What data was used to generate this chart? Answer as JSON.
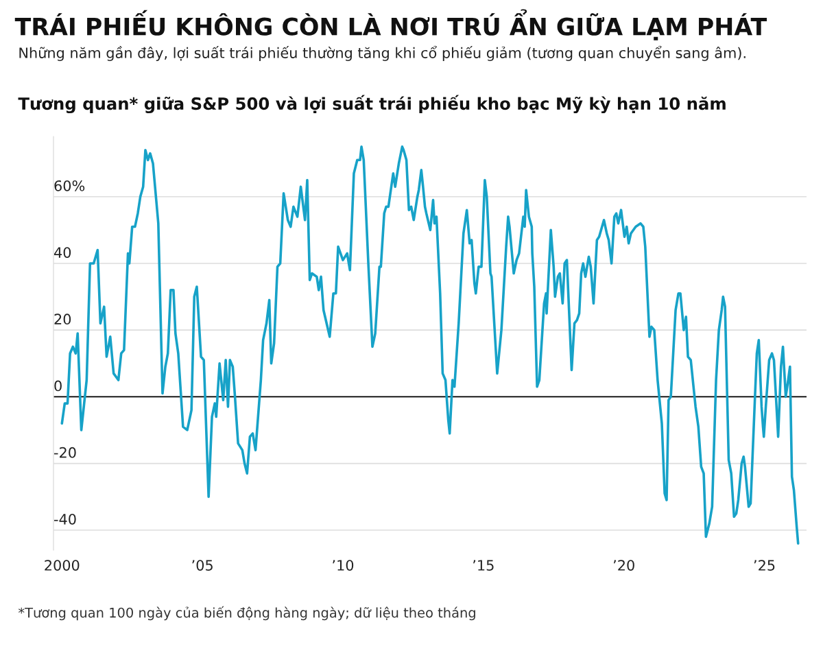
{
  "chart_data": {
    "type": "line",
    "title": "TRÁI PHIẾU KHÔNG CÒN LÀ NƠI TRÚ ẨN GIỮA LẠM PHÁT",
    "subtitle": "Những năm gần đây, lợi suất trái phiếu thường tăng khi cổ phiếu giảm (tương quan chuyển sang âm).",
    "ylabel": "Tương quan* giữa S&P 500 và lợi suất trái phiếu kho bạc Mỹ kỳ hạn 10 năm",
    "annotations": [
      "*Tương quan 100 ngày của biến động hàng ngày; dữ liệu theo tháng"
    ],
    "x": [
      2000.0,
      2000.1,
      2000.2,
      2000.29,
      2000.39,
      2000.49,
      2000.56,
      2000.69,
      2000.88,
      2001.0,
      2001.13,
      2001.27,
      2001.37,
      2001.5,
      2001.59,
      2001.72,
      2001.84,
      2002.01,
      2002.11,
      2002.21,
      2002.35,
      2002.4,
      2002.5,
      2002.6,
      2002.7,
      2002.79,
      2002.89,
      2002.97,
      2003.06,
      2003.14,
      2003.24,
      2003.43,
      2003.58,
      2003.68,
      2003.77,
      2003.87,
      2003.97,
      2004.04,
      2004.14,
      2004.31,
      2004.46,
      2004.61,
      2004.71,
      2004.8,
      2004.95,
      2005.05,
      2005.22,
      2005.34,
      2005.44,
      2005.49,
      2005.61,
      2005.74,
      2005.83,
      2005.91,
      2005.98,
      2006.08,
      2006.15,
      2006.27,
      2006.42,
      2006.5,
      2006.59,
      2006.69,
      2006.79,
      2006.89,
      2007.08,
      2007.16,
      2007.28,
      2007.38,
      2007.45,
      2007.55,
      2007.67,
      2007.77,
      2007.89,
      2008.04,
      2008.14,
      2008.24,
      2008.38,
      2008.5,
      2008.65,
      2008.73,
      2008.82,
      2008.9,
      2009.07,
      2009.14,
      2009.22,
      2009.31,
      2009.53,
      2009.66,
      2009.75,
      2009.83,
      2010.0,
      2010.15,
      2010.25,
      2010.39,
      2010.51,
      2010.61,
      2010.66,
      2010.74,
      2010.91,
      2011.05,
      2011.15,
      2011.3,
      2011.35,
      2011.47,
      2011.54,
      2011.62,
      2011.79,
      2011.86,
      2011.99,
      2012.11,
      2012.16,
      2012.26,
      2012.35,
      2012.43,
      2012.52,
      2012.65,
      2012.7,
      2012.79,
      2012.84,
      2012.92,
      2012.97,
      2013.11,
      2013.21,
      2013.26,
      2013.33,
      2013.46,
      2013.55,
      2013.65,
      2013.75,
      2013.8,
      2013.9,
      2013.97,
      2014.12,
      2014.29,
      2014.41,
      2014.51,
      2014.58,
      2014.68,
      2014.73,
      2014.83,
      2014.93,
      2015.05,
      2015.12,
      2015.25,
      2015.29,
      2015.49,
      2015.64,
      2015.81,
      2015.88,
      2015.93,
      2016.08,
      2016.18,
      2016.27,
      2016.42,
      2016.47,
      2016.52,
      2016.62,
      2016.72,
      2016.74,
      2016.81,
      2016.91,
      2016.99,
      2017.16,
      2017.23,
      2017.25,
      2017.4,
      2017.5,
      2017.55,
      2017.65,
      2017.72,
      2017.82,
      2017.89,
      2017.97,
      2018.14,
      2018.24,
      2018.33,
      2018.41,
      2018.48,
      2018.55,
      2018.63,
      2018.75,
      2018.82,
      2018.92,
      2019.04,
      2019.12,
      2019.29,
      2019.39,
      2019.46,
      2019.56,
      2019.66,
      2019.73,
      2019.8,
      2019.9,
      2020.02,
      2020.1,
      2020.17,
      2020.25,
      2020.42,
      2020.59,
      2020.69,
      2020.76,
      2020.91,
      2020.98,
      2021.08,
      2021.2,
      2021.35,
      2021.45,
      2021.52,
      2021.59,
      2021.67,
      2021.84,
      2021.94,
      2022.01,
      2022.13,
      2022.21,
      2022.28,
      2022.38,
      2022.55,
      2022.65,
      2022.75,
      2022.84,
      2022.92,
      2023.04,
      2023.14,
      2023.28,
      2023.38,
      2023.48,
      2023.53,
      2023.6,
      2023.73,
      2023.82,
      2023.92,
      2024.0,
      2024.07,
      2024.19,
      2024.26,
      2024.31,
      2024.44,
      2024.51,
      2024.66,
      2024.73,
      2024.8,
      2024.9,
      2024.95,
      2024.98,
      2025.05,
      2025.17,
      2025.27,
      2025.34,
      2025.49,
      2025.59,
      2025.66,
      2025.76,
      2025.83,
      2025.91,
      2025.98,
      2026.05,
      2026.15,
      2026.2
    ],
    "series": [
      {
        "color": "#17a2c8",
        "values": [
          -8,
          -2,
          -2,
          13,
          15,
          13,
          19,
          -10,
          5,
          40,
          40,
          44,
          22,
          27,
          12,
          18,
          7,
          5,
          13,
          14,
          43,
          40,
          51,
          51,
          55,
          60,
          63,
          74,
          71,
          73,
          70,
          52,
          1,
          9,
          13,
          32,
          32,
          19,
          13,
          -9,
          -10,
          -4,
          30,
          33,
          12,
          11,
          -30,
          -6,
          -2,
          -6,
          10,
          -1,
          11,
          -3,
          11,
          9,
          1,
          -14,
          -16,
          -20,
          -23,
          -12,
          -11,
          -16,
          5,
          17,
          22,
          29,
          10,
          16,
          39,
          40,
          61,
          53,
          51,
          57,
          54,
          63,
          53,
          65,
          35,
          37,
          36,
          32,
          36,
          26,
          18,
          31,
          31,
          45,
          41,
          43,
          38,
          67,
          71,
          71,
          75,
          71,
          39,
          15,
          19,
          39,
          39,
          55,
          57,
          57,
          67,
          63,
          70,
          75,
          74,
          71,
          56,
          57,
          53,
          60,
          62,
          68,
          64,
          57,
          55,
          50,
          59,
          52,
          54,
          31,
          7,
          5,
          -7,
          -11,
          5,
          3,
          22,
          49,
          56,
          46,
          47,
          34,
          31,
          39,
          39,
          65,
          60,
          37,
          36,
          7,
          20,
          45,
          54,
          51,
          37,
          41,
          43,
          54,
          51,
          62,
          54,
          51,
          43,
          33,
          3,
          5,
          28,
          31,
          25,
          50,
          39,
          30,
          36,
          37,
          28,
          40,
          41,
          8,
          22,
          23,
          25,
          37,
          40,
          36,
          42,
          39,
          28,
          47,
          48,
          53,
          49,
          47,
          40,
          54,
          55,
          52,
          56,
          48,
          51,
          46,
          49,
          51,
          52,
          51,
          45,
          18,
          21,
          20,
          5,
          -8,
          -29,
          -31,
          -1,
          0,
          26,
          31,
          31,
          20,
          24,
          12,
          11,
          -3,
          -9,
          -21,
          -23,
          -42,
          -38,
          -33,
          5,
          20,
          26,
          30,
          27,
          -19,
          -23,
          -36,
          -35,
          -31,
          -20,
          -18,
          -21,
          -33,
          -32,
          -1,
          13,
          17,
          -3,
          -9,
          -12,
          -3,
          11,
          13,
          11,
          -12,
          9,
          15,
          0,
          4,
          9,
          -24,
          -28,
          -39,
          -44
        ]
      }
    ],
    "xlim": [
      1999.7,
      2026.5
    ],
    "ylim": [
      -46,
      78
    ],
    "xticks": [
      2000,
      {
        "value": 2005,
        "label": "’05"
      },
      {
        "value": 2010,
        "label": "’10"
      },
      {
        "value": 2015,
        "label": "’15"
      },
      {
        "value": 2020,
        "label": "’20"
      },
      {
        "value": 2025,
        "label": "’25"
      }
    ],
    "yticks": [
      {
        "value": -40,
        "label": "-40"
      },
      {
        "value": -20,
        "label": "-20"
      },
      0,
      20,
      40,
      {
        "value": 60,
        "label": "60%"
      }
    ],
    "ref_lines": [
      {
        "axis": "y",
        "value": 0,
        "color": "#000000"
      }
    ],
    "grid": "y",
    "marker": "none",
    "line_style": "solid"
  }
}
